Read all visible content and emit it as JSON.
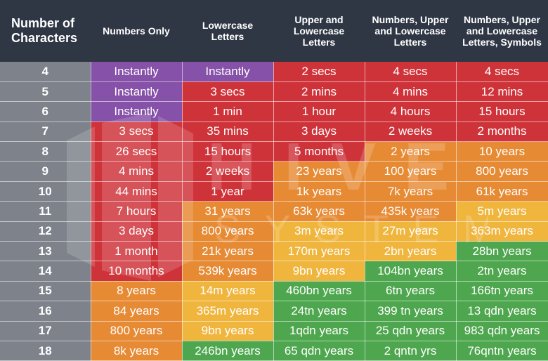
{
  "headers": [
    "Number of Characters",
    "Numbers Only",
    "Lowercase Letters",
    "Upper and Lowercase Letters",
    "Numbers, Upper and Lowercase Letters",
    "Numbers, Upper and Lowercase Letters, Symbols"
  ],
  "watermark": {
    "line1": "HIVE",
    "line2": "SYSTEMS"
  },
  "colors": {
    "purple": "#8651a8",
    "red": "#cf333a",
    "orange": "#e78a34",
    "yellow": "#f0b53d",
    "green": "#4ea64e",
    "header": "#2f3644",
    "count": "#7d828b"
  },
  "rows": [
    {
      "chars": "4",
      "cells": [
        {
          "text": "Instantly",
          "color": "purple"
        },
        {
          "text": "Instantly",
          "color": "purple"
        },
        {
          "text": "2 secs",
          "color": "red"
        },
        {
          "text": "4 secs",
          "color": "red"
        },
        {
          "text": "4 secs",
          "color": "red"
        }
      ]
    },
    {
      "chars": "5",
      "cells": [
        {
          "text": "Instantly",
          "color": "purple"
        },
        {
          "text": "3 secs",
          "color": "red"
        },
        {
          "text": "2 mins",
          "color": "red"
        },
        {
          "text": "4 mins",
          "color": "red"
        },
        {
          "text": "12 mins",
          "color": "red"
        }
      ]
    },
    {
      "chars": "6",
      "cells": [
        {
          "text": "Instantly",
          "color": "purple"
        },
        {
          "text": "1 min",
          "color": "red"
        },
        {
          "text": "1 hour",
          "color": "red"
        },
        {
          "text": "4 hours",
          "color": "red"
        },
        {
          "text": "15 hours",
          "color": "red"
        }
      ]
    },
    {
      "chars": "7",
      "cells": [
        {
          "text": "3 secs",
          "color": "red"
        },
        {
          "text": "35 mins",
          "color": "red"
        },
        {
          "text": "3 days",
          "color": "red"
        },
        {
          "text": "2 weeks",
          "color": "red"
        },
        {
          "text": "2 months",
          "color": "red"
        }
      ]
    },
    {
      "chars": "8",
      "cells": [
        {
          "text": "26 secs",
          "color": "red"
        },
        {
          "text": "15 hours",
          "color": "red"
        },
        {
          "text": "5 months",
          "color": "red"
        },
        {
          "text": "2 years",
          "color": "orange"
        },
        {
          "text": "10 years",
          "color": "orange"
        }
      ]
    },
    {
      "chars": "9",
      "cells": [
        {
          "text": "4 mins",
          "color": "red"
        },
        {
          "text": "2 weeks",
          "color": "red"
        },
        {
          "text": "23 years",
          "color": "orange"
        },
        {
          "text": "100 years",
          "color": "orange"
        },
        {
          "text": "800 years",
          "color": "orange"
        }
      ]
    },
    {
      "chars": "10",
      "cells": [
        {
          "text": "44 mins",
          "color": "red"
        },
        {
          "text": "1 year",
          "color": "red"
        },
        {
          "text": "1k years",
          "color": "orange"
        },
        {
          "text": "7k years",
          "color": "orange"
        },
        {
          "text": "61k years",
          "color": "orange"
        }
      ]
    },
    {
      "chars": "11",
      "cells": [
        {
          "text": "7 hours",
          "color": "red"
        },
        {
          "text": "31 years",
          "color": "orange"
        },
        {
          "text": "63k years",
          "color": "orange"
        },
        {
          "text": "435k years",
          "color": "orange"
        },
        {
          "text": "5m years",
          "color": "yellow"
        }
      ]
    },
    {
      "chars": "12",
      "cells": [
        {
          "text": "3 days",
          "color": "red"
        },
        {
          "text": "800 years",
          "color": "orange"
        },
        {
          "text": "3m years",
          "color": "yellow"
        },
        {
          "text": "27m years",
          "color": "yellow"
        },
        {
          "text": "363m years",
          "color": "yellow"
        }
      ]
    },
    {
      "chars": "13",
      "cells": [
        {
          "text": "1 month",
          "color": "red"
        },
        {
          "text": "21k years",
          "color": "orange"
        },
        {
          "text": "170m years",
          "color": "yellow"
        },
        {
          "text": "2bn years",
          "color": "yellow"
        },
        {
          "text": "28bn years",
          "color": "green"
        }
      ]
    },
    {
      "chars": "14",
      "cells": [
        {
          "text": "10 months",
          "color": "red"
        },
        {
          "text": "539k years",
          "color": "orange"
        },
        {
          "text": "9bn years",
          "color": "yellow"
        },
        {
          "text": "104bn years",
          "color": "green"
        },
        {
          "text": "2tn years",
          "color": "green"
        }
      ]
    },
    {
      "chars": "15",
      "cells": [
        {
          "text": "8 years",
          "color": "orange"
        },
        {
          "text": "14m years",
          "color": "yellow"
        },
        {
          "text": "460bn years",
          "color": "green"
        },
        {
          "text": "6tn years",
          "color": "green"
        },
        {
          "text": "166tn years",
          "color": "green"
        }
      ]
    },
    {
      "chars": "16",
      "cells": [
        {
          "text": "84 years",
          "color": "orange"
        },
        {
          "text": "365m years",
          "color": "yellow"
        },
        {
          "text": "24tn years",
          "color": "green"
        },
        {
          "text": "399 tn years",
          "color": "green"
        },
        {
          "text": "13 qdn years",
          "color": "green"
        }
      ]
    },
    {
      "chars": "17",
      "cells": [
        {
          "text": "800 years",
          "color": "orange"
        },
        {
          "text": "9bn years",
          "color": "yellow"
        },
        {
          "text": "1qdn years",
          "color": "green"
        },
        {
          "text": "25 qdn years",
          "color": "green"
        },
        {
          "text": "983 qdn years",
          "color": "green"
        }
      ]
    },
    {
      "chars": "18",
      "cells": [
        {
          "text": "8k years",
          "color": "orange"
        },
        {
          "text": "246bn years",
          "color": "green"
        },
        {
          "text": "65 qdn years",
          "color": "green"
        },
        {
          "text": "2 qntn yrs",
          "color": "green"
        },
        {
          "text": "76qntn years",
          "color": "green"
        }
      ]
    }
  ]
}
